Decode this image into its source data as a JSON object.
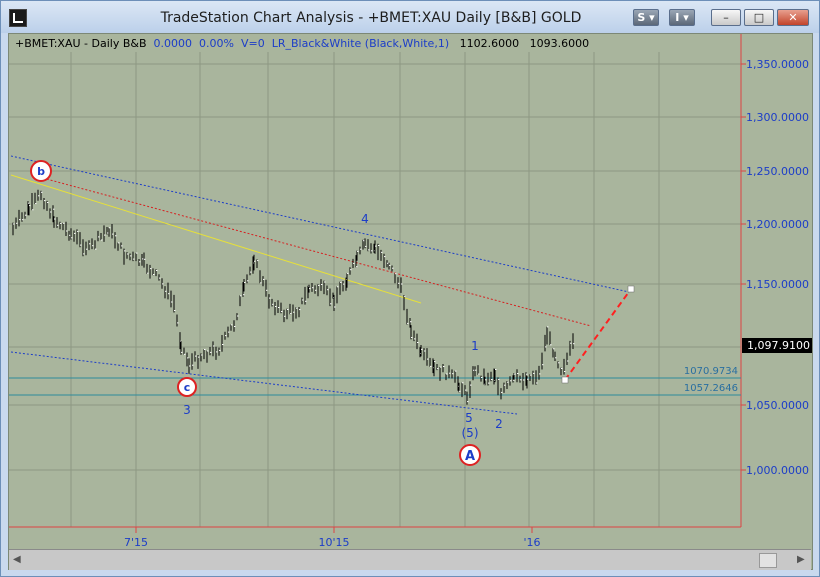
{
  "window": {
    "title": "TradeStation Chart Analysis - +BMET:XAU Daily [B&B] GOLD",
    "buttons": {
      "style_label": "S",
      "insert_label": "I",
      "minimize_label": "–",
      "maximize_label": "□",
      "close_label": "✕"
    }
  },
  "status": {
    "symbol": "+BMET:XAU - Daily  B&B",
    "change": "0.0000",
    "change_pct": "0.00%",
    "volume": "V=0",
    "indicator": "LR_Black&White (Black,White,1)",
    "high": "1102.6000",
    "low": "1093.6000"
  },
  "price_axis": {
    "ticks": [
      "1,350.0000",
      "1,300.0000",
      "1,250.0000",
      "1,200.0000",
      "1,150.0000",
      "1,050.0000",
      "1,000.0000"
    ],
    "last_price": "1,097.9100",
    "level_1": "1070.9734",
    "level_2": "1057.2646"
  },
  "time_axis": {
    "labels": [
      "7'15",
      "10'15",
      "'16"
    ]
  },
  "wave_labels": {
    "b": "b",
    "c": "c",
    "w3": "3",
    "w4": "4",
    "w1": "1",
    "w2": "2",
    "w5": "5",
    "w5b": "(5)",
    "A": "A"
  },
  "colors": {
    "chart_background": "#a9b59d",
    "price_line": "#e07070",
    "channel": "#1c3dc8",
    "regression_yellow": "#e6e03a",
    "regression_red": "#d62020",
    "level_line": "#2d8c9c"
  }
}
